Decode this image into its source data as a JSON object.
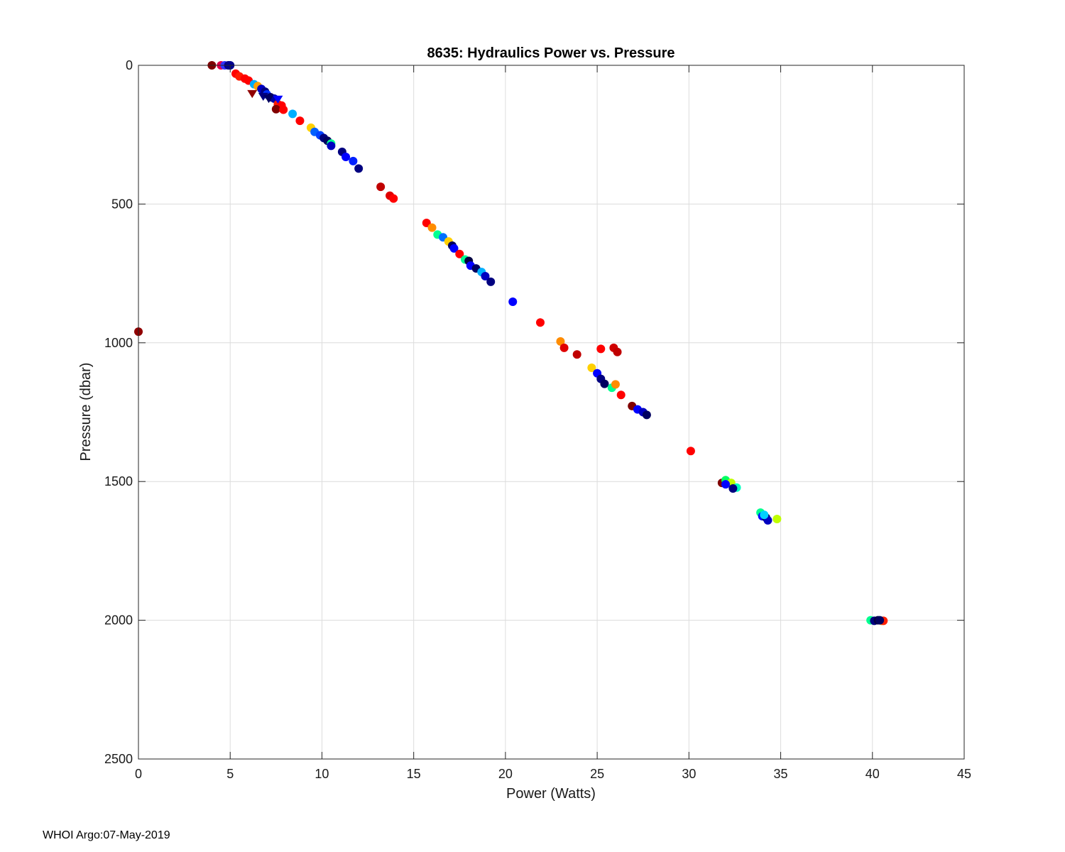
{
  "chart_data": {
    "type": "scatter",
    "title": "8635: Hydraulics Power vs. Pressure",
    "xlabel": "Power (Watts)",
    "ylabel": "Pressure (dbar)",
    "xlim": [
      0,
      45
    ],
    "ylim": [
      0,
      2500
    ],
    "y_reversed": true,
    "grid": true,
    "xticks": [
      0,
      5,
      10,
      15,
      20,
      25,
      30,
      35,
      40,
      45
    ],
    "yticks": [
      0,
      500,
      1000,
      1500,
      2000,
      2500
    ],
    "color_scale": "jet (dark red = earliest profile, dark navy = latest profile)",
    "circle_points": [
      [
        4.0,
        0,
        "#800000"
      ],
      [
        4.5,
        0,
        "#e0004a"
      ],
      [
        4.7,
        0,
        "#3030ff"
      ],
      [
        4.9,
        0,
        "#000080"
      ],
      [
        5.0,
        0,
        "#00008f"
      ],
      [
        5.3,
        30,
        "#ff0000"
      ],
      [
        5.5,
        40,
        "#ff1a00"
      ],
      [
        5.8,
        48,
        "#ff0000"
      ],
      [
        6.0,
        55,
        "#ff0000"
      ],
      [
        6.3,
        68,
        "#00aaff"
      ],
      [
        6.5,
        75,
        "#ffa000"
      ],
      [
        6.7,
        85,
        "#0000c0"
      ],
      [
        6.9,
        95,
        "#000080"
      ],
      [
        7.0,
        105,
        "#0030ff"
      ],
      [
        7.2,
        115,
        "#000060"
      ],
      [
        7.4,
        120,
        "#0000a0"
      ],
      [
        7.6,
        140,
        "#ff1a00"
      ],
      [
        7.8,
        145,
        "#ff0000"
      ],
      [
        7.5,
        158,
        "#800000"
      ],
      [
        7.9,
        160,
        "#ff0000"
      ],
      [
        8.4,
        175,
        "#00b0ff"
      ],
      [
        8.8,
        200,
        "#ff0000"
      ],
      [
        9.4,
        225,
        "#ffd000"
      ],
      [
        9.6,
        240,
        "#0060ff"
      ],
      [
        9.9,
        252,
        "#0040ff"
      ],
      [
        10.1,
        262,
        "#000080"
      ],
      [
        10.3,
        272,
        "#000060"
      ],
      [
        10.5,
        282,
        "#00ff90"
      ],
      [
        10.5,
        290,
        "#0000c0"
      ],
      [
        11.1,
        312,
        "#000080"
      ],
      [
        11.3,
        330,
        "#0000ff"
      ],
      [
        11.7,
        345,
        "#0020ff"
      ],
      [
        12.0,
        372,
        "#000080"
      ],
      [
        13.2,
        438,
        "#c00000"
      ],
      [
        13.7,
        470,
        "#e00000"
      ],
      [
        13.9,
        480,
        "#ff0000"
      ],
      [
        15.7,
        568,
        "#ff0000"
      ],
      [
        16.0,
        585,
        "#ff8c00"
      ],
      [
        16.3,
        610,
        "#00ff90"
      ],
      [
        16.6,
        620,
        "#0070ff"
      ],
      [
        16.9,
        635,
        "#ffd000"
      ],
      [
        17.1,
        650,
        "#000060"
      ],
      [
        17.2,
        660,
        "#0000ff"
      ],
      [
        17.5,
        680,
        "#ff0000"
      ],
      [
        17.8,
        700,
        "#00ff90"
      ],
      [
        18.0,
        705,
        "#000040"
      ],
      [
        18.1,
        722,
        "#0000ff"
      ],
      [
        18.4,
        732,
        "#000060"
      ],
      [
        18.7,
        745,
        "#00b0ff"
      ],
      [
        18.9,
        760,
        "#0000c0"
      ],
      [
        19.2,
        780,
        "#000080"
      ],
      [
        20.4,
        852,
        "#0000ff"
      ],
      [
        21.9,
        927,
        "#ff0000"
      ],
      [
        23.0,
        995,
        "#ff8c00"
      ],
      [
        23.2,
        1018,
        "#e00000"
      ],
      [
        23.9,
        1042,
        "#c00000"
      ],
      [
        25.2,
        1022,
        "#ff0000"
      ],
      [
        25.9,
        1018,
        "#d00000"
      ],
      [
        26.1,
        1033,
        "#c00000"
      ],
      [
        24.7,
        1090,
        "#ffd000"
      ],
      [
        25.0,
        1110,
        "#0000ff"
      ],
      [
        25.2,
        1130,
        "#000080"
      ],
      [
        25.4,
        1148,
        "#000060"
      ],
      [
        25.8,
        1162,
        "#00ff90"
      ],
      [
        26.0,
        1150,
        "#ff8c00"
      ],
      [
        26.3,
        1188,
        "#ff0000"
      ],
      [
        26.9,
        1228,
        "#800000"
      ],
      [
        27.2,
        1240,
        "#0000ff"
      ],
      [
        27.5,
        1250,
        "#0000c0"
      ],
      [
        27.7,
        1260,
        "#000060"
      ],
      [
        30.1,
        1390,
        "#ff0000"
      ],
      [
        31.8,
        1505,
        "#800000"
      ],
      [
        32.0,
        1495,
        "#00ff60"
      ],
      [
        32.3,
        1505,
        "#c0ff00"
      ],
      [
        32.6,
        1522,
        "#00ffc0"
      ],
      [
        32.4,
        1525,
        "#000080"
      ],
      [
        32.0,
        1510,
        "#0000ff"
      ],
      [
        33.9,
        1612,
        "#00ff90"
      ],
      [
        34.0,
        1625,
        "#0000ff"
      ],
      [
        34.2,
        1630,
        "#000060"
      ],
      [
        34.3,
        1640,
        "#0000c0"
      ],
      [
        34.8,
        1635,
        "#c0ff00"
      ],
      [
        34.1,
        1620,
        "#00d0ff"
      ],
      [
        39.9,
        2000,
        "#00ff90"
      ],
      [
        40.1,
        2002,
        "#000080"
      ],
      [
        40.3,
        2000,
        "#000040"
      ],
      [
        40.5,
        2002,
        "#ffa000"
      ],
      [
        40.6,
        2002,
        "#ff2000"
      ],
      [
        40.4,
        2000,
        "#000060"
      ],
      [
        0.0,
        960,
        "#900000"
      ]
    ],
    "triangle_points": [
      [
        6.2,
        100,
        "#900000"
      ],
      [
        6.8,
        110,
        "#000080"
      ],
      [
        7.1,
        118,
        "#000060"
      ],
      [
        7.6,
        120,
        "#0000ff"
      ]
    ]
  },
  "footer": {
    "text": "WHOI Argo:07-May-2019"
  }
}
